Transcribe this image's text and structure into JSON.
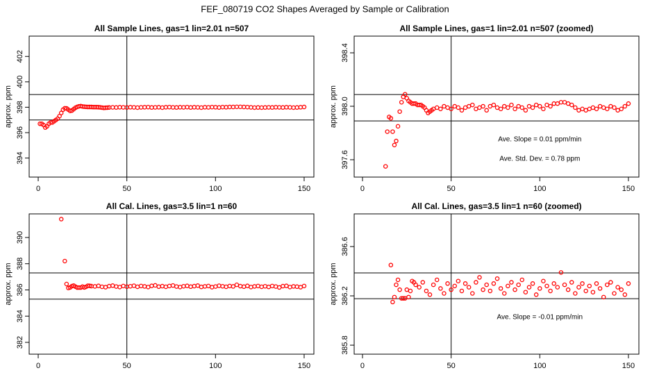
{
  "title": "FEF_080719  CO2 Shapes Averaged by Sample or Calibration",
  "chart_data": [
    {
      "type": "scatter",
      "title": "All Sample Lines, gas=1 lin=2.01 n=507",
      "ylabel": "approx. ppm",
      "color": "#ff0000",
      "xlim": [
        -5.1,
        155.5
      ],
      "ylim": [
        392.5,
        403.6
      ],
      "xticks": [
        0,
        50,
        100,
        150
      ],
      "yticks": [
        394,
        396,
        398,
        400,
        402
      ],
      "hlines": [
        397,
        399
      ],
      "vline": 50,
      "annotations": [],
      "x": [
        1,
        2,
        3,
        4,
        5,
        6,
        7,
        8,
        9,
        10,
        11,
        12,
        13,
        14,
        15,
        16,
        17,
        18,
        19,
        20,
        21,
        22,
        23,
        24,
        25,
        26,
        27,
        28,
        29,
        30,
        31,
        32,
        33,
        34,
        35,
        36,
        37,
        38,
        39,
        40,
        42,
        44,
        46,
        48,
        50,
        52,
        54,
        56,
        58,
        60,
        62,
        64,
        66,
        68,
        70,
        72,
        74,
        76,
        78,
        80,
        82,
        84,
        86,
        88,
        90,
        92,
        94,
        96,
        98,
        100,
        102,
        104,
        106,
        108,
        110,
        112,
        114,
        116,
        118,
        120,
        122,
        124,
        126,
        128,
        130,
        132,
        134,
        136,
        138,
        140,
        142,
        144,
        146,
        148,
        150
      ],
      "values": [
        396.7,
        396.7,
        396.6,
        396.4,
        396.5,
        396.7,
        396.8,
        396.8,
        396.9,
        397.0,
        397.1,
        397.3,
        397.55,
        397.81,
        397.92,
        397.91,
        397.81,
        397.71,
        397.74,
        397.85,
        397.96,
        398.03,
        398.07,
        398.09,
        398.06,
        398.04,
        398.03,
        398.02,
        398.02,
        398.02,
        398.01,
        398.01,
        398.01,
        398.0,
        397.99,
        397.97,
        397.95,
        397.96,
        397.97,
        397.98,
        397.99,
        397.98,
        398.0,
        397.99,
        397.98,
        398.0,
        397.99,
        397.97,
        397.99,
        398.0,
        398.01,
        397.98,
        397.99,
        398.0,
        397.97,
        398.0,
        398.01,
        397.99,
        397.98,
        398.0,
        397.99,
        398.01,
        397.98,
        398.0,
        397.99,
        397.97,
        398.0,
        397.99,
        398.01,
        398.0,
        397.98,
        398.01,
        398.0,
        398.02,
        398.02,
        398.03,
        398.03,
        398.02,
        398.01,
        397.99,
        397.97,
        397.98,
        397.97,
        397.98,
        397.99,
        397.98,
        398.0,
        397.99,
        397.98,
        398.0,
        397.99,
        397.97,
        397.98,
        398.0,
        398.02
      ]
    },
    {
      "type": "scatter",
      "title": "All Sample Lines, gas=1 lin=2.01 n=507 (zoomed)",
      "ylabel": "approx. ppm",
      "color": "#ff0000",
      "xlim": [
        -4.7,
        155.9
      ],
      "ylim": [
        397.47,
        398.525
      ],
      "xticks": [
        0,
        50,
        100,
        150
      ],
      "yticks": [
        397.6,
        {
          "value": 398,
          "label": "398.0"
        },
        398.4
      ],
      "hlines": [
        397.89,
        398.088
      ],
      "vline": 50,
      "annotations": [
        "Ave. Slope =  0.01  ppm/min",
        "Ave. Std. Dev. = 0.78  ppm"
      ],
      "x": [
        13,
        14,
        15,
        16,
        17,
        18,
        19,
        20,
        21,
        22,
        23,
        24,
        25,
        26,
        27,
        28,
        29,
        30,
        31,
        32,
        33,
        34,
        35,
        36,
        37,
        38,
        39,
        40,
        42,
        44,
        46,
        48,
        50,
        52,
        54,
        56,
        58,
        60,
        62,
        64,
        66,
        68,
        70,
        72,
        74,
        76,
        78,
        80,
        82,
        84,
        86,
        88,
        90,
        92,
        94,
        96,
        98,
        100,
        102,
        104,
        106,
        108,
        110,
        112,
        114,
        116,
        118,
        120,
        122,
        124,
        126,
        128,
        130,
        132,
        134,
        136,
        138,
        140,
        142,
        144,
        146,
        148,
        150
      ],
      "values": [
        397.55,
        397.81,
        397.92,
        397.91,
        397.81,
        397.71,
        397.74,
        397.85,
        397.96,
        398.03,
        398.07,
        398.09,
        398.06,
        398.04,
        398.03,
        398.02,
        398.02,
        398.02,
        398.01,
        398.01,
        398.01,
        398.0,
        397.99,
        397.97,
        397.95,
        397.96,
        397.97,
        397.98,
        397.99,
        397.98,
        398.0,
        397.99,
        397.98,
        398.0,
        397.99,
        397.97,
        397.99,
        398.0,
        398.01,
        397.98,
        397.99,
        398.0,
        397.97,
        398.0,
        398.01,
        397.99,
        397.98,
        398.0,
        397.99,
        398.01,
        397.98,
        398.0,
        397.99,
        397.97,
        398.0,
        397.99,
        398.01,
        398.0,
        397.98,
        398.01,
        398.0,
        398.02,
        398.02,
        398.03,
        398.03,
        398.02,
        398.01,
        397.99,
        397.97,
        397.98,
        397.97,
        397.98,
        397.99,
        397.98,
        398.0,
        397.99,
        397.98,
        398.0,
        397.99,
        397.97,
        397.98,
        398.0,
        398.02
      ]
    },
    {
      "type": "scatter",
      "title": "All Cal. Lines, gas=3.5 lin=1 n=60",
      "ylabel": "approx. ppm",
      "color": "#ff0000",
      "xlim": [
        -5.1,
        155.5
      ],
      "ylim": [
        381.1,
        391.8
      ],
      "xticks": [
        0,
        50,
        100,
        150
      ],
      "yticks": [
        382,
        384,
        386,
        388,
        390
      ],
      "hlines": [
        385.3,
        387.3
      ],
      "vline": 50,
      "annotations": [],
      "x": [
        13,
        15,
        16,
        17,
        18,
        19,
        20,
        21,
        22,
        23,
        24,
        25,
        26,
        27,
        28,
        29,
        30,
        32,
        34,
        36,
        38,
        40,
        42,
        44,
        46,
        48,
        50,
        52,
        54,
        56,
        58,
        60,
        62,
        64,
        66,
        68,
        70,
        72,
        74,
        76,
        78,
        80,
        82,
        84,
        86,
        88,
        90,
        92,
        94,
        96,
        98,
        100,
        102,
        104,
        106,
        108,
        110,
        112,
        114,
        116,
        118,
        120,
        122,
        124,
        126,
        128,
        130,
        132,
        134,
        136,
        138,
        140,
        142,
        144,
        146,
        148,
        150
      ],
      "values": [
        391.4,
        388.2,
        386.45,
        386.15,
        386.19,
        386.29,
        386.33,
        386.25,
        386.18,
        386.18,
        386.18,
        386.25,
        386.19,
        386.24,
        386.32,
        386.31,
        386.29,
        386.27,
        386.31,
        386.24,
        386.21,
        386.29,
        386.33,
        386.26,
        386.22,
        386.3,
        386.25,
        386.28,
        386.32,
        386.24,
        386.3,
        386.27,
        386.22,
        386.31,
        386.35,
        386.25,
        386.29,
        386.24,
        386.3,
        386.34,
        386.26,
        386.22,
        386.28,
        386.31,
        386.25,
        386.29,
        386.33,
        386.23,
        386.27,
        386.3,
        386.21,
        386.26,
        386.32,
        386.28,
        386.24,
        386.3,
        386.27,
        386.39,
        386.29,
        386.25,
        386.31,
        386.22,
        386.27,
        386.3,
        386.24,
        386.28,
        386.23,
        386.3,
        386.26,
        386.19,
        386.29,
        386.31,
        386.22,
        386.27,
        386.25,
        386.21,
        386.3
      ]
    },
    {
      "type": "scatter",
      "title": "All Cal. Lines, gas=3.5 lin=1 n=60 (zoomed)",
      "ylabel": "approx. ppm",
      "color": "#ff0000",
      "xlim": [
        -4.7,
        155.9
      ],
      "ylim": [
        385.727,
        386.865
      ],
      "xticks": [
        0,
        50,
        100,
        150
      ],
      "yticks": [
        385.8,
        386.2,
        386.6
      ],
      "hlines": [
        386.177,
        386.386
      ],
      "vline": 50,
      "annotations": [
        "Ave. Slope =  -0.01  ppm/min"
      ],
      "x": [
        16,
        17,
        18,
        19,
        20,
        21,
        22,
        23,
        24,
        25,
        26,
        27,
        28,
        29,
        30,
        32,
        34,
        36,
        38,
        40,
        42,
        44,
        46,
        48,
        50,
        52,
        54,
        56,
        58,
        60,
        62,
        64,
        66,
        68,
        70,
        72,
        74,
        76,
        78,
        80,
        82,
        84,
        86,
        88,
        90,
        92,
        94,
        96,
        98,
        100,
        102,
        104,
        106,
        108,
        110,
        112,
        114,
        116,
        118,
        120,
        122,
        124,
        126,
        128,
        130,
        132,
        134,
        136,
        138,
        140,
        142,
        144,
        146,
        148,
        150
      ],
      "values": [
        386.45,
        386.15,
        386.19,
        386.29,
        386.33,
        386.25,
        386.18,
        386.18,
        386.18,
        386.25,
        386.19,
        386.24,
        386.32,
        386.31,
        386.29,
        386.27,
        386.31,
        386.24,
        386.21,
        386.29,
        386.33,
        386.26,
        386.22,
        386.3,
        386.25,
        386.28,
        386.32,
        386.24,
        386.3,
        386.27,
        386.22,
        386.31,
        386.35,
        386.25,
        386.29,
        386.24,
        386.3,
        386.34,
        386.26,
        386.22,
        386.28,
        386.31,
        386.25,
        386.29,
        386.33,
        386.23,
        386.27,
        386.3,
        386.21,
        386.26,
        386.32,
        386.28,
        386.24,
        386.3,
        386.27,
        386.39,
        386.29,
        386.25,
        386.31,
        386.22,
        386.27,
        386.3,
        386.24,
        386.28,
        386.23,
        386.3,
        386.26,
        386.19,
        386.29,
        386.31,
        386.22,
        386.27,
        386.25,
        386.21,
        386.3
      ]
    }
  ]
}
